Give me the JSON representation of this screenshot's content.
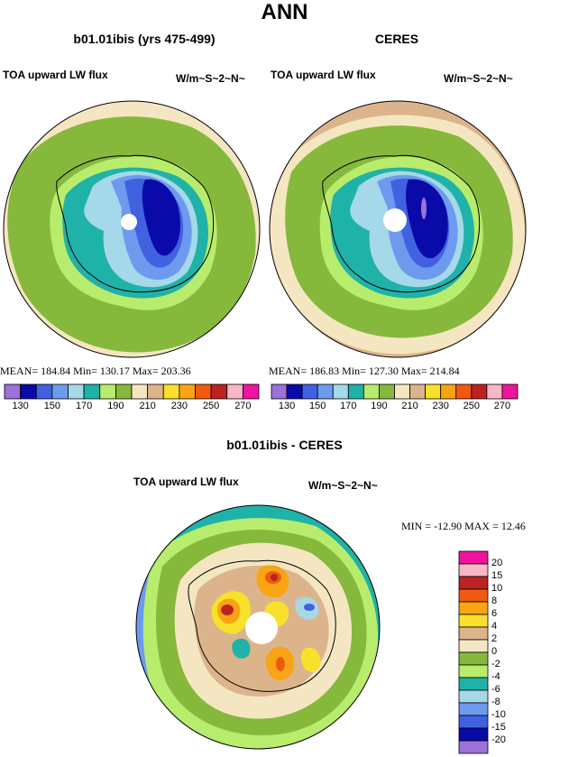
{
  "page": {
    "title": "ANN"
  },
  "panels": [
    {
      "title": "b01.01ibis (yrs 475-499)",
      "variable": "TOA upward LW flux",
      "units": "W/m~S~2~N~",
      "stats": "MEAN=  184.84   Min=  130.17   Max=  203.36"
    },
    {
      "title": "CERES",
      "variable": "TOA upward LW flux",
      "units": "W/m~S~2~N~",
      "stats": "MEAN=  186.83   Min=  127.30   Max=  214.84"
    }
  ],
  "diff_panel": {
    "title": "b01.01ibis - CERES",
    "variable": "TOA upward LW flux",
    "units": "W/m~S~2~N~",
    "stats": "MIN =  -12.90  MAX =   12.46"
  },
  "colorbar_top": {
    "tick_labels": [
      "130",
      "150",
      "170",
      "190",
      "210",
      "230",
      "250",
      "270"
    ],
    "colors": [
      "#9a72d8",
      "#0a0aa8",
      "#4061e0",
      "#6e9aee",
      "#a5d8e8",
      "#1fb2a8",
      "#b8ec6c",
      "#86b83c",
      "#f5e6c2",
      "#dcb48c",
      "#f7e12a",
      "#f8a414",
      "#f05a10",
      "#bb2222",
      "#f8b6c6",
      "#f014a0"
    ]
  },
  "colorbar_diff": {
    "tick_labels": [
      "20",
      "15",
      "10",
      "8",
      "6",
      "4",
      "2",
      "0",
      "-2",
      "-4",
      "-6",
      "-8",
      "-10",
      "-15",
      "-20"
    ],
    "colors": [
      "#f014a0",
      "#f8b6c6",
      "#bb2222",
      "#f05a10",
      "#f8a414",
      "#f7e12a",
      "#dcb48c",
      "#f5e6c2",
      "#86b83c",
      "#b8ec6c",
      "#1fb2a8",
      "#a5d8e8",
      "#6e9aee",
      "#4061e0",
      "#0a0aa8",
      "#9a72d8"
    ]
  },
  "colors": {
    "green": "#86b83c",
    "cream": "#f5e6c2",
    "tan": "#dcb48c"
  }
}
